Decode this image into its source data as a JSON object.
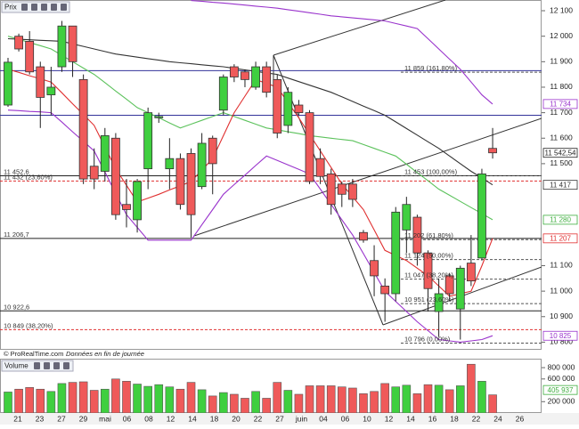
{
  "chart_data": [
    {
      "type": "candlestick",
      "title": "Prix",
      "open": [
        11730,
        12000,
        11980,
        11880,
        11770,
        11880,
        12040,
        11830,
        11490,
        11470,
        11600,
        11340,
        11280,
        11480,
        11680,
        11480,
        11520,
        11540,
        11410,
        11600,
        11710,
        11880,
        11860,
        11800,
        11880,
        11830,
        11650,
        11730,
        11700,
        11520,
        11460,
        11420,
        11420,
        11230,
        11120,
        11020,
        10990,
        11240,
        11290,
        11150,
        10920,
        11060,
        10930,
        11110,
        11130,
        11560
      ],
      "high": [
        11915,
        12010,
        12020,
        11900,
        11880,
        12060,
        12040,
        11850,
        11560,
        11640,
        11620,
        11440,
        11440,
        11720,
        11700,
        11600,
        11540,
        11560,
        11620,
        11610,
        11850,
        11890,
        11870,
        11900,
        11900,
        11850,
        11800,
        11750,
        11710,
        11560,
        11480,
        11430,
        11440,
        11240,
        11180,
        11050,
        11330,
        11370,
        11300,
        11160,
        11050,
        11070,
        11100,
        11220,
        11480,
        11640
      ],
      "low": [
        11723,
        11940,
        11850,
        11640,
        11690,
        11860,
        11840,
        11420,
        11400,
        11430,
        11280,
        11250,
        11230,
        11400,
        11660,
        11400,
        11320,
        11210,
        11400,
        11380,
        11690,
        11820,
        11800,
        11790,
        11760,
        11600,
        11620,
        11690,
        11420,
        11420,
        11300,
        11330,
        11330,
        11190,
        10980,
        10880,
        10960,
        11150,
        11100,
        10920,
        10820,
        10960,
        10810,
        11020,
        11120,
        11520
      ],
      "close": [
        11898,
        11950,
        11860,
        11760,
        11800,
        12040,
        11900,
        11440,
        11440,
        11610,
        11300,
        11320,
        11430,
        11700,
        11685,
        11520,
        11340,
        11300,
        11580,
        11500,
        11840,
        11840,
        11830,
        11880,
        11780,
        11620,
        11780,
        11700,
        11430,
        11450,
        11340,
        11380,
        11360,
        11200,
        11060,
        10990,
        11310,
        11340,
        11150,
        11010,
        10990,
        10990,
        11090,
        11040,
        11460,
        11542.54
      ],
      "up_color": "#3fcf3f",
      "down_color": "#ef5a5a",
      "series": [
        {
          "color": "#333333",
          "values": [
            11990,
            11988,
            11986,
            11984,
            11982,
            11980,
            11970,
            11960,
            11950,
            11940,
            11930,
            11924,
            11918,
            11912,
            11906,
            11900,
            11896,
            11892,
            11888,
            11884,
            11880,
            11874,
            11868,
            11862,
            11856,
            11850,
            11836,
            11822,
            11808,
            11794,
            11780,
            11762,
            11744,
            11726,
            11708,
            11690,
            11664,
            11638,
            11612,
            11586,
            11560,
            11530,
            11500,
            11470,
            11444,
            11417
          ]
        },
        {
          "color": "#5cc25c",
          "values": [
            12000,
            11988,
            11975,
            11963,
            11950,
            11925,
            11900,
            11875,
            11850,
            11818,
            11785,
            11753,
            11720,
            11700,
            11680,
            11660,
            11640,
            11655,
            11670,
            11685,
            11700,
            11685,
            11670,
            11655,
            11640,
            11633,
            11625,
            11618,
            11610,
            11605,
            11600,
            11595,
            11590,
            11575,
            11560,
            11545,
            11530,
            11498,
            11465,
            11433,
            11400,
            11376,
            11352,
            11328,
            11304,
            11280
          ]
        },
        {
          "color": "#e03030",
          "values": [
            11870,
            11858,
            11845,
            11833,
            11820,
            11778,
            11735,
            11693,
            11650,
            11565,
            11480,
            11415,
            11350,
            11365,
            11380,
            11397,
            11413,
            11430,
            11475,
            11520,
            11610,
            11700,
            11765,
            11830,
            11815,
            11800,
            11740,
            11680,
            11615,
            11550,
            11485,
            11420,
            11370,
            11320,
            11240,
            11160,
            11140,
            11120,
            11090,
            11060,
            11020,
            10980,
            10990,
            11000,
            11100,
            11207
          ]
        },
        {
          "color": "#9933cc",
          "values": [
            null,
            null,
            null,
            null,
            null,
            null,
            null,
            null,
            null,
            null,
            null,
            null,
            null,
            null,
            null,
            null,
            null,
            12140,
            12137,
            12133,
            12130,
            12126,
            12122,
            12118,
            12114,
            12110,
            12104,
            12098,
            12092,
            12086,
            12080,
            12076,
            12072,
            12068,
            12064,
            12060,
            12050,
            12040,
            12030,
            11990,
            11950,
            11910,
            11870,
            11820,
            11770,
            11734
          ]
        },
        {
          "color": "#9933cc",
          "values": [
            11710,
            11708,
            11705,
            11703,
            11700,
            11663,
            11625,
            11588,
            11550,
            11467,
            11383,
            11300,
            11250,
            11200,
            11200,
            11200,
            11200,
            11200,
            11260,
            11320,
            11380,
            11418,
            11455,
            11493,
            11530,
            11513,
            11495,
            11478,
            11460,
            11400,
            11340,
            11280,
            11220,
            11147,
            11073,
            11000,
            10960,
            10920,
            10880,
            10845,
            10810,
            10805,
            10800,
            10805,
            10810,
            10825
          ]
        }
      ],
      "ylim": [
        10770,
        12142
      ],
      "yticks": [
        {
          "value": 12100,
          "label": "12 100"
        },
        {
          "value": 12000,
          "label": "12 000"
        },
        {
          "value": 11900,
          "label": "11 900"
        },
        {
          "value": 11800,
          "label": "11 800"
        },
        {
          "value": 11700,
          "label": "11 700"
        },
        {
          "value": 11600,
          "label": "11 600"
        },
        {
          "value": 11500,
          "label": "11 500"
        },
        {
          "value": 11100,
          "label": "11 100"
        },
        {
          "value": 11000,
          "label": "11 000"
        },
        {
          "value": 10900,
          "label": "10 900"
        },
        {
          "value": 10800,
          "label": "10 800"
        }
      ],
      "hlines": [
        {
          "value": 11865,
          "color": "#333399"
        },
        {
          "value": 11690,
          "color": "#333399"
        }
      ],
      "levels": [
        {
          "value": 11452.6,
          "label": "11 452,6",
          "color": "#222222",
          "dashed": false,
          "side": "left"
        },
        {
          "value": 11432,
          "label": "11 432 (23,60%)",
          "color": "#e03030",
          "dashed": true,
          "side": "left"
        },
        {
          "value": 11206.7,
          "label": "11 206,7",
          "color": "#222222",
          "dashed": false,
          "side": "left"
        },
        {
          "value": 10922.6,
          "label": "10 922,6",
          "color": "#222222",
          "dashed": false,
          "side": "left"
        },
        {
          "value": 10849,
          "label": "10 849 (38,20%)",
          "color": "#e03030",
          "dashed": true,
          "side": "left"
        },
        {
          "value": 11859,
          "label": "11 859 (161,80%)",
          "color": "#555555",
          "dashed": true,
          "side": "right"
        },
        {
          "value": 11453,
          "label": "11 453 (100,00%)",
          "color": "#555555",
          "dashed": true,
          "side": "right"
        },
        {
          "value": 11202,
          "label": "11 202 (61,80%)",
          "color": "#555555",
          "dashed": true,
          "side": "right"
        },
        {
          "value": 11124,
          "label": "11 124 (50,00%)",
          "color": "#555555",
          "dashed": true,
          "side": "right"
        },
        {
          "value": 11047,
          "label": "11 047 (38,20%)",
          "color": "#555555",
          "dashed": true,
          "side": "right"
        },
        {
          "value": 10951,
          "label": "10 951 (23,60%)",
          "color": "#555555",
          "dashed": true,
          "side": "right"
        },
        {
          "value": 10796,
          "label": "10 796 (0,00%)",
          "color": "#555555",
          "dashed": true,
          "side": "right"
        }
      ],
      "price_tags": [
        {
          "value": 11734,
          "label": "11 734",
          "color": "#9933cc"
        },
        {
          "value": 11542.54,
          "label": "11 542,54",
          "color": "#222222"
        },
        {
          "value": 11417,
          "label": "11 417",
          "color": "#333333"
        },
        {
          "value": 11280,
          "label": "11 280",
          "color": "#3fae3f"
        },
        {
          "value": 11207,
          "label": "11 207",
          "color": "#e03030"
        },
        {
          "value": 10825,
          "label": "10 825",
          "color": "#9933cc"
        }
      ],
      "x_labels": [
        "21",
        "23",
        "27",
        "29",
        "mai",
        "06",
        "08",
        "12",
        "14",
        "18",
        "20",
        "22",
        "27",
        "juin",
        "04",
        "06",
        "10",
        "12",
        "14",
        "16",
        "18",
        "22",
        "24",
        "26"
      ],
      "source": "© ProRealTime.com",
      "note": "Données en fin de journée"
    },
    {
      "type": "bar",
      "title": "Volume",
      "values": [
        370000,
        420000,
        450000,
        420000,
        380000,
        520000,
        540000,
        550000,
        400000,
        420000,
        600000,
        560000,
        510000,
        470000,
        500000,
        460000,
        420000,
        540000,
        410000,
        300000,
        360000,
        330000,
        260000,
        380000,
        260000,
        540000,
        400000,
        330000,
        480000,
        480000,
        480000,
        460000,
        440000,
        340000,
        380000,
        520000,
        460000,
        490000,
        340000,
        500000,
        490000,
        410000,
        480000,
        860000,
        560000,
        320000
      ],
      "ylim": [
        0,
        958000
      ],
      "yticks": [
        {
          "value": 800000,
          "label": "800 000"
        },
        {
          "value": 600000,
          "label": "600 000"
        },
        {
          "value": 200000,
          "label": "200 000"
        }
      ],
      "price_tags": [
        {
          "value": 405937,
          "label": "405 937",
          "color": "#3fae3f"
        }
      ]
    }
  ]
}
